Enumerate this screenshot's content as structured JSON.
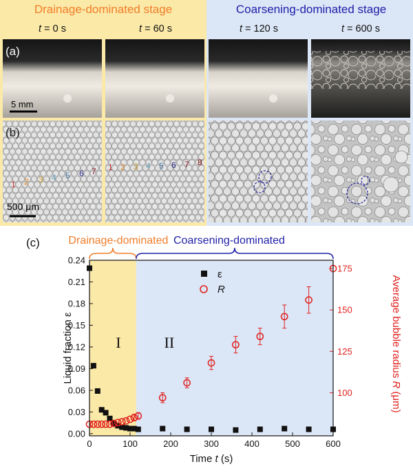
{
  "stages": {
    "drainage": "Drainage-dominated stage",
    "coarsening": "Coarsening-dominated stage"
  },
  "time_labels": [
    "t = 0 s",
    "t = 60 s",
    "t = 120 s",
    "t = 600 s"
  ],
  "panels": {
    "a": "(a)",
    "b": "(b)",
    "c": "(c)",
    "scale_a": "5 mm",
    "scale_b": "500 μm"
  },
  "bubble_labels_t0": [
    "1",
    "2",
    "3",
    "4",
    "5",
    "6",
    "7"
  ],
  "bubble_labels_t60": [
    "1",
    "2",
    "3",
    "4",
    "5",
    "6",
    "7",
    "8"
  ],
  "bubble_label_colors": [
    "#d23a3a",
    "#e48a2a",
    "#c49a2a",
    "#6aa0b8",
    "#4a7aa8",
    "#2a2a8a",
    "#8a1a2a",
    "#7a1010"
  ],
  "colors": {
    "drainage": "#f07d2a",
    "coarsening": "#1e1ea8",
    "drainage_bg": "#fbe9a7",
    "coarsening_bg": "#dbe6f6",
    "epsilon": "#111111",
    "radius": "#e0201e"
  },
  "regions": {
    "I": "I",
    "II": "II",
    "drainage": "Drainage-dominated",
    "coarsening": "Coarsening-dominated"
  },
  "chart_data": {
    "type": "scatter",
    "xlabel": "Time t (s)",
    "ylabel_left": "Liquid fraction ε",
    "ylabel_right": "Average bubble radius R (μm)",
    "xlim": [
      0,
      600
    ],
    "ylim_left": [
      -0.003,
      0.24
    ],
    "ylim_right": [
      74,
      180
    ],
    "x_ticks": [
      0,
      100,
      200,
      300,
      400,
      500,
      600
    ],
    "y_left_ticks": [
      0.0,
      0.03,
      0.06,
      0.09,
      0.12,
      0.15,
      0.18,
      0.21,
      0.24
    ],
    "y_left_tick_labels": [
      "0.00",
      "0.03",
      "0.06",
      "0.09",
      "0.12",
      "0.15",
      "0.18",
      "0.21",
      "0.24"
    ],
    "y_right_ticks": [
      100,
      125,
      150,
      175
    ],
    "legend": [
      "ε",
      "R"
    ],
    "legend_position": "top",
    "series": [
      {
        "name": "ε",
        "axis": "left",
        "x": [
          0,
          10,
          20,
          30,
          40,
          50,
          60,
          70,
          80,
          90,
          100,
          110,
          120,
          180,
          240,
          300,
          360,
          420,
          480,
          540,
          600
        ],
        "y": [
          0.229,
          0.094,
          0.059,
          0.033,
          0.029,
          0.021,
          0.014,
          0.011,
          0.009,
          0.008,
          0.007,
          0.007,
          0.006,
          0.007,
          0.006,
          0.006,
          0.005,
          0.006,
          0.007,
          0.006,
          0.006
        ]
      },
      {
        "name": "R",
        "axis": "right",
        "x": [
          0,
          10,
          20,
          30,
          40,
          50,
          60,
          70,
          80,
          90,
          100,
          110,
          120,
          180,
          240,
          300,
          360,
          420,
          480,
          540,
          600
        ],
        "y": [
          81,
          81,
          81,
          81,
          81,
          81,
          81.5,
          82,
          82.5,
          83,
          84,
          85,
          86,
          97,
          106,
          118,
          129,
          134,
          146,
          156,
          175
        ],
        "error": [
          0,
          0,
          0,
          0,
          0,
          0,
          0,
          0,
          0,
          0,
          0,
          2,
          2,
          3,
          3,
          4,
          5,
          5,
          7,
          8,
          0
        ]
      }
    ]
  }
}
